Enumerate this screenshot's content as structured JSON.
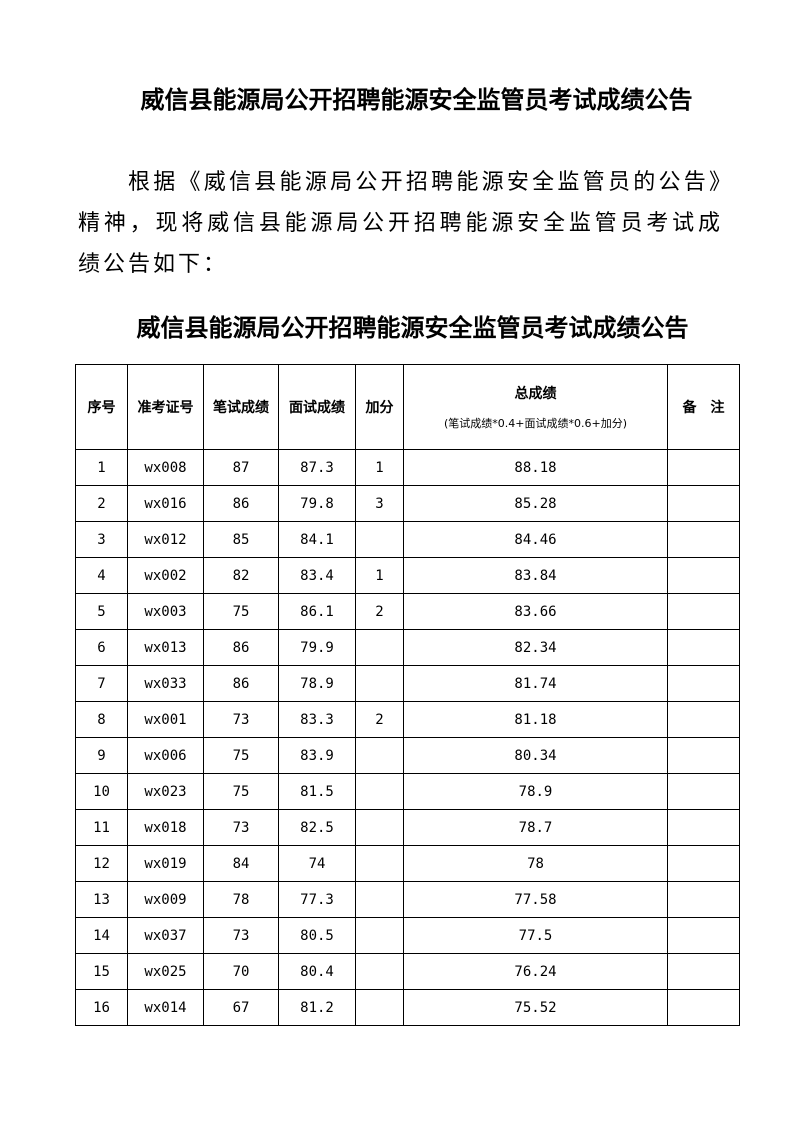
{
  "title": "威信县能源局公开招聘能源安全监管员考试成绩公告",
  "paragraph": "根据《威信县能源局公开招聘能源安全监管员的公告》精神，现将威信县能源局公开招聘能源安全监管员考试成绩公告如下：",
  "table_title": "威信县能源局公开招聘能源安全监管员考试成绩公告",
  "table": {
    "headers": [
      "序号",
      "准考证号",
      "笔试成绩",
      "面试成绩",
      "加分",
      "总成绩",
      "备　注"
    ],
    "total_formula": "(笔试成绩*0.4+面试成绩*0.6+加分)",
    "rows": [
      [
        "1",
        "wx008",
        "87",
        "87.3",
        "1",
        "88.18",
        ""
      ],
      [
        "2",
        "wx016",
        "86",
        "79.8",
        "3",
        "85.28",
        ""
      ],
      [
        "3",
        "wx012",
        "85",
        "84.1",
        "",
        "84.46",
        ""
      ],
      [
        "4",
        "wx002",
        "82",
        "83.4",
        "1",
        "83.84",
        ""
      ],
      [
        "5",
        "wx003",
        "75",
        "86.1",
        "2",
        "83.66",
        ""
      ],
      [
        "6",
        "wx013",
        "86",
        "79.9",
        "",
        "82.34",
        ""
      ],
      [
        "7",
        "wx033",
        "86",
        "78.9",
        "",
        "81.74",
        ""
      ],
      [
        "8",
        "wx001",
        "73",
        "83.3",
        "2",
        "81.18",
        ""
      ],
      [
        "9",
        "wx006",
        "75",
        "83.9",
        "",
        "80.34",
        ""
      ],
      [
        "10",
        "wx023",
        "75",
        "81.5",
        "",
        "78.9",
        ""
      ],
      [
        "11",
        "wx018",
        "73",
        "82.5",
        "",
        "78.7",
        ""
      ],
      [
        "12",
        "wx019",
        "84",
        "74",
        "",
        "78",
        ""
      ],
      [
        "13",
        "wx009",
        "78",
        "77.3",
        "",
        "77.58",
        ""
      ],
      [
        "14",
        "wx037",
        "73",
        "80.5",
        "",
        "77.5",
        ""
      ],
      [
        "15",
        "wx025",
        "70",
        "80.4",
        "",
        "76.24",
        ""
      ],
      [
        "16",
        "wx014",
        "67",
        "81.2",
        "",
        "75.52",
        ""
      ]
    ]
  }
}
